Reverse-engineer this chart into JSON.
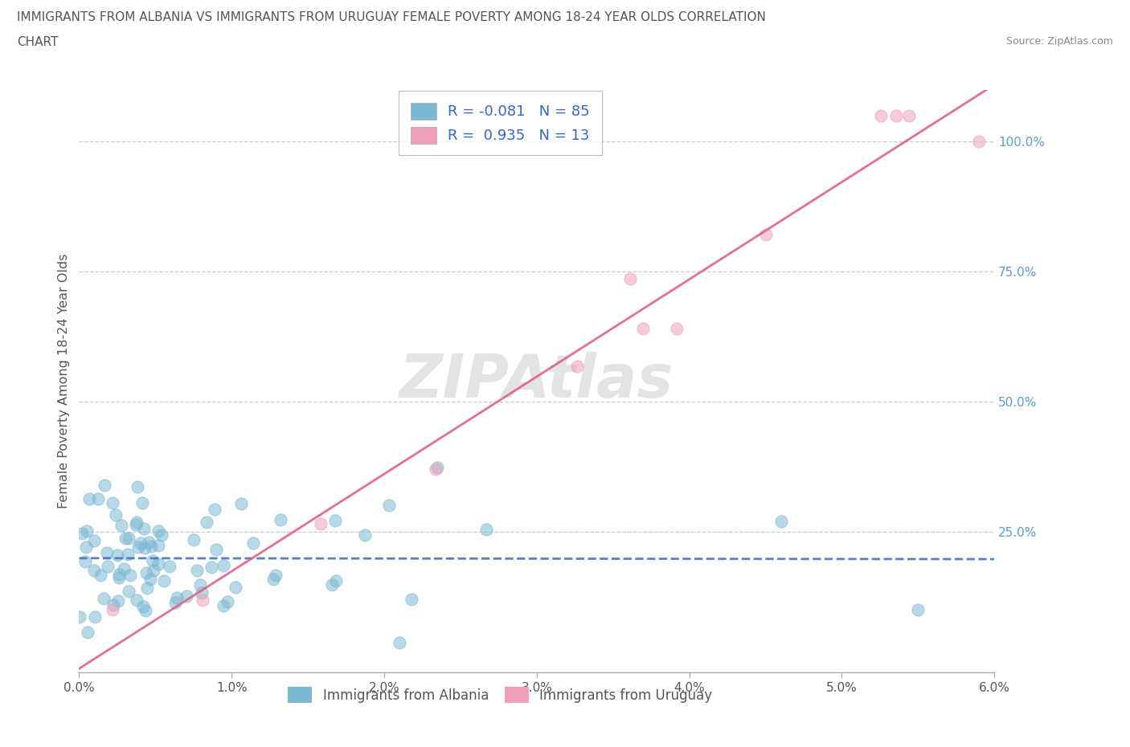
{
  "title_line1": "IMMIGRANTS FROM ALBANIA VS IMMIGRANTS FROM URUGUAY FEMALE POVERTY AMONG 18-24 YEAR OLDS CORRELATION",
  "title_line2": "CHART",
  "source": "Source: ZipAtlas.com",
  "ylabel": "Female Poverty Among 18-24 Year Olds",
  "xlim": [
    0.0,
    0.06
  ],
  "ylim": [
    -0.02,
    1.1
  ],
  "albania_color": "#7BB8D4",
  "albania_line_color": "#4472C4",
  "uruguay_color": "#F0A0B8",
  "uruguay_line_color": "#E06080",
  "albania_R": -0.081,
  "albania_N": 85,
  "uruguay_R": 0.935,
  "uruguay_N": 13,
  "watermark": "ZIPAtlas",
  "background_color": "#ffffff",
  "legend_albania": "Immigrants from Albania",
  "legend_uruguay": "Immigrants from Uruguay",
  "ytick_color": "#5B9BD5",
  "xtick_color": "#555555",
  "title_color": "#555555",
  "ylabel_color": "#555555"
}
